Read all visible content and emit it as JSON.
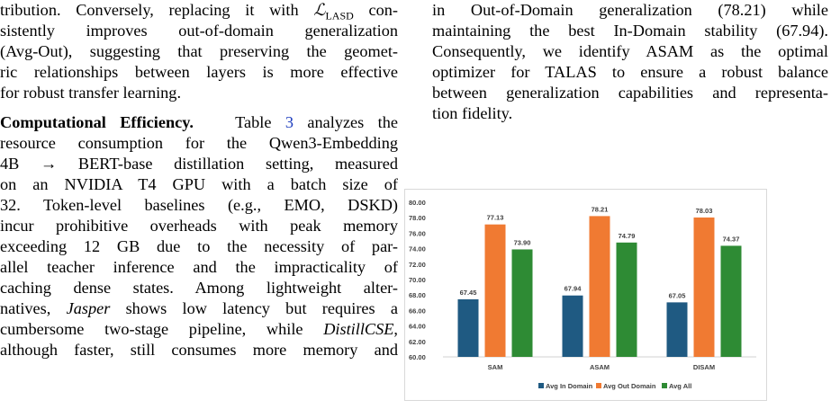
{
  "left_column": {
    "lines": [
      {
        "pre": "tribution. Conversely, replacing it with ",
        "math_main": "ℒ",
        "math_sub": "LASD",
        "post": " con-"
      },
      {
        "text": "sistently improves out-of-domain generalization"
      },
      {
        "text": "(Avg-Out), suggesting that preserving the geomet-"
      },
      {
        "text": "ric relationships between layers is more effective"
      },
      {
        "text": "for robust transfer learning."
      }
    ],
    "heading": "Computational Efficiency.",
    "para_line1": {
      "pre": "Table ",
      "ref": "3",
      "post": " analyzes the"
    },
    "para_lines": [
      "resource consumption for the Qwen3-Embedding",
      "4B → BERT-base distillation setting, measured",
      "on an NVIDIA T4 GPU with a batch size of",
      "32. Token-level baselines (e.g., EMO, DSKD)",
      "incur prohibitive overheads with peak memory",
      "exceeding 12 GB due to the necessity of par-",
      "allel teacher inference and the impracticality of",
      "caching dense states. Among lightweight alter-"
    ],
    "jasper_line": {
      "pre": "natives, ",
      "ital": "Jasper",
      "post": " shows low latency but requires a"
    },
    "distill_line": {
      "pre": "cumbersome two-stage pipeline, while ",
      "ital": "DistillCSE",
      "post": ","
    },
    "last_line": "although faster, still consumes more memory and"
  },
  "right_column": {
    "lines": [
      "in Out-of-Domain generalization (78.21) while",
      "maintaining the best In-Domain stability (67.94).",
      "Consequently, we identify ASAM as the optimal",
      "optimizer for TALAS to ensure a robust balance",
      "between generalization capabilities and representa-",
      "tion fidelity."
    ]
  },
  "chart_data": {
    "type": "bar",
    "categories": [
      "SAM",
      "ASAM",
      "DISAM"
    ],
    "series": [
      {
        "name": "Avg In Domain",
        "color": "#1f5a82",
        "values": [
          67.45,
          67.94,
          67.05
        ]
      },
      {
        "name": "Avg Out Domain",
        "color": "#f07a32",
        "values": [
          77.13,
          78.21,
          78.03
        ]
      },
      {
        "name": "Avg All",
        "color": "#2e8b34",
        "values": [
          73.9,
          74.79,
          74.37
        ]
      }
    ],
    "ylim": [
      60,
      80
    ],
    "yticks": [
      "60.00",
      "62.00",
      "64.00",
      "66.00",
      "68.00",
      "70.00",
      "72.00",
      "74.00",
      "76.00",
      "78.00",
      "80.00"
    ],
    "data_labels": [
      [
        "67.45",
        "77.13",
        "73.90"
      ],
      [
        "67.94",
        "78.21",
        "74.79"
      ],
      [
        "67.05",
        "78.03",
        "74.37"
      ]
    ],
    "grid": false,
    "legend_position": "bottom"
  }
}
